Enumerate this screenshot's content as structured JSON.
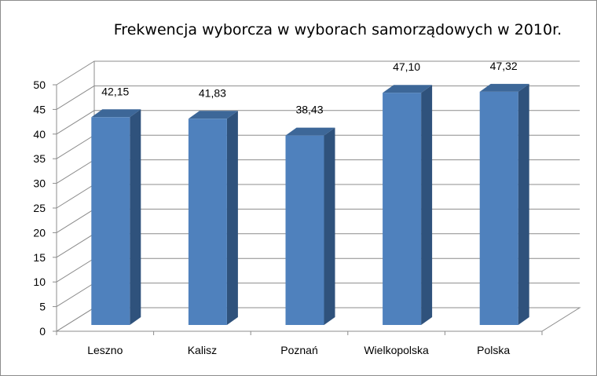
{
  "chart_data": {
    "type": "bar",
    "title": "Frekwencja wyborcza  w wyborach  samorządowych  w 2010r.",
    "categories": [
      "Leszno",
      "Kalisz",
      "Poznań",
      "Wielkopolska",
      "Polska"
    ],
    "values": [
      42.15,
      41.83,
      38.43,
      47.1,
      47.32
    ],
    "value_labels": [
      "42,15",
      "41,83",
      "38,43",
      "47,10",
      "47,32"
    ],
    "ylim": [
      0,
      50
    ],
    "yticks": [
      "0",
      "5",
      "10",
      "15",
      "20",
      "25",
      "30",
      "35",
      "40",
      "45",
      "50"
    ],
    "grid": true,
    "legend": "none",
    "style": "3d-column",
    "bar_color": "#4f81bd",
    "bar_side_color": "#2f527c",
    "bar_top_color": "#3d6798"
  }
}
